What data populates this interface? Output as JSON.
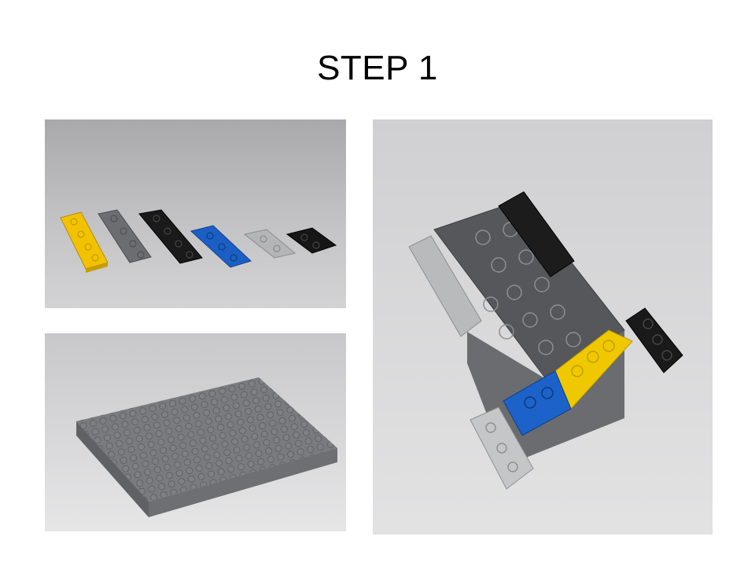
{
  "title": "STEP 1"
}
